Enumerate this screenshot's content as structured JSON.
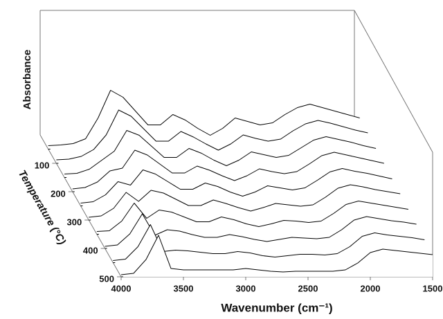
{
  "chart_data": {
    "type": "waterfall",
    "y_label": "Absorbance",
    "z_label": "Temperature (°C)",
    "x_label": "Wavenumber (cm⁻¹)",
    "xlim": [
      4000,
      1500
    ],
    "xticks": [
      4000,
      3500,
      3000,
      2500,
      2000,
      1500
    ],
    "zlim": [
      0,
      500
    ],
    "zticks": [
      100,
      200,
      300,
      400,
      500
    ],
    "ylim": [
      0,
      1
    ],
    "color": "#000000",
    "x": [
      4000,
      3900,
      3800,
      3700,
      3600,
      3500,
      3400,
      3300,
      3200,
      3100,
      3000,
      2900,
      2800,
      2700,
      2600,
      2500,
      2400,
      2300,
      2200,
      2100,
      2000,
      1900,
      1800,
      1700,
      1600,
      1500
    ],
    "z": [
      50,
      100,
      150,
      200,
      250,
      300,
      350,
      400,
      450,
      500
    ],
    "series": [
      {
        "values": [
          0.05,
          0.06,
          0.08,
          0.15,
          0.45,
          0.85,
          0.75,
          0.55,
          0.35,
          0.35,
          0.5,
          0.42,
          0.3,
          0.2,
          0.3,
          0.45,
          0.4,
          0.35,
          0.38,
          0.5,
          0.6,
          0.65,
          0.6,
          0.55,
          0.5,
          0.45
        ]
      },
      {
        "values": [
          0.05,
          0.06,
          0.1,
          0.2,
          0.41,
          0.77,
          0.68,
          0.5,
          0.32,
          0.32,
          0.46,
          0.38,
          0.28,
          0.19,
          0.28,
          0.41,
          0.36,
          0.32,
          0.35,
          0.47,
          0.57,
          0.62,
          0.58,
          0.53,
          0.48,
          0.44
        ]
      },
      {
        "values": [
          0.05,
          0.06,
          0.12,
          0.25,
          0.38,
          0.68,
          0.61,
          0.45,
          0.29,
          0.29,
          0.42,
          0.35,
          0.25,
          0.17,
          0.25,
          0.37,
          0.33,
          0.29,
          0.32,
          0.43,
          0.54,
          0.59,
          0.55,
          0.51,
          0.46,
          0.42
        ]
      },
      {
        "values": [
          0.04,
          0.06,
          0.14,
          0.3,
          0.34,
          0.6,
          0.53,
          0.4,
          0.27,
          0.27,
          0.37,
          0.31,
          0.23,
          0.16,
          0.23,
          0.33,
          0.29,
          0.26,
          0.29,
          0.4,
          0.52,
          0.57,
          0.53,
          0.49,
          0.45,
          0.41
        ]
      },
      {
        "values": [
          0.04,
          0.06,
          0.16,
          0.35,
          0.3,
          0.52,
          0.46,
          0.35,
          0.24,
          0.24,
          0.33,
          0.28,
          0.2,
          0.14,
          0.2,
          0.29,
          0.26,
          0.23,
          0.26,
          0.37,
          0.49,
          0.54,
          0.5,
          0.47,
          0.43,
          0.39
        ]
      },
      {
        "values": [
          0.04,
          0.06,
          0.17,
          0.4,
          0.27,
          0.43,
          0.39,
          0.3,
          0.21,
          0.21,
          0.29,
          0.24,
          0.18,
          0.13,
          0.18,
          0.24,
          0.22,
          0.2,
          0.22,
          0.33,
          0.46,
          0.51,
          0.48,
          0.44,
          0.41,
          0.38
        ]
      },
      {
        "values": [
          0.04,
          0.05,
          0.19,
          0.45,
          0.23,
          0.35,
          0.32,
          0.25,
          0.18,
          0.18,
          0.25,
          0.21,
          0.15,
          0.11,
          0.15,
          0.2,
          0.19,
          0.17,
          0.19,
          0.3,
          0.43,
          0.48,
          0.45,
          0.42,
          0.39,
          0.36
        ]
      },
      {
        "values": [
          0.03,
          0.05,
          0.21,
          0.5,
          0.19,
          0.27,
          0.25,
          0.2,
          0.16,
          0.16,
          0.2,
          0.17,
          0.13,
          0.1,
          0.13,
          0.16,
          0.15,
          0.14,
          0.16,
          0.27,
          0.41,
          0.46,
          0.43,
          0.4,
          0.38,
          0.35
        ]
      },
      {
        "values": [
          0.03,
          0.05,
          0.23,
          0.55,
          0.16,
          0.18,
          0.17,
          0.15,
          0.13,
          0.13,
          0.16,
          0.14,
          0.1,
          0.08,
          0.1,
          0.12,
          0.12,
          0.11,
          0.13,
          0.23,
          0.38,
          0.43,
          0.4,
          0.38,
          0.36,
          0.33
        ]
      },
      {
        "values": [
          0.03,
          0.05,
          0.25,
          0.6,
          0.12,
          0.1,
          0.1,
          0.1,
          0.1,
          0.1,
          0.12,
          0.1,
          0.08,
          0.07,
          0.08,
          0.08,
          0.08,
          0.08,
          0.1,
          0.2,
          0.35,
          0.4,
          0.38,
          0.36,
          0.34,
          0.32
        ]
      }
    ]
  }
}
